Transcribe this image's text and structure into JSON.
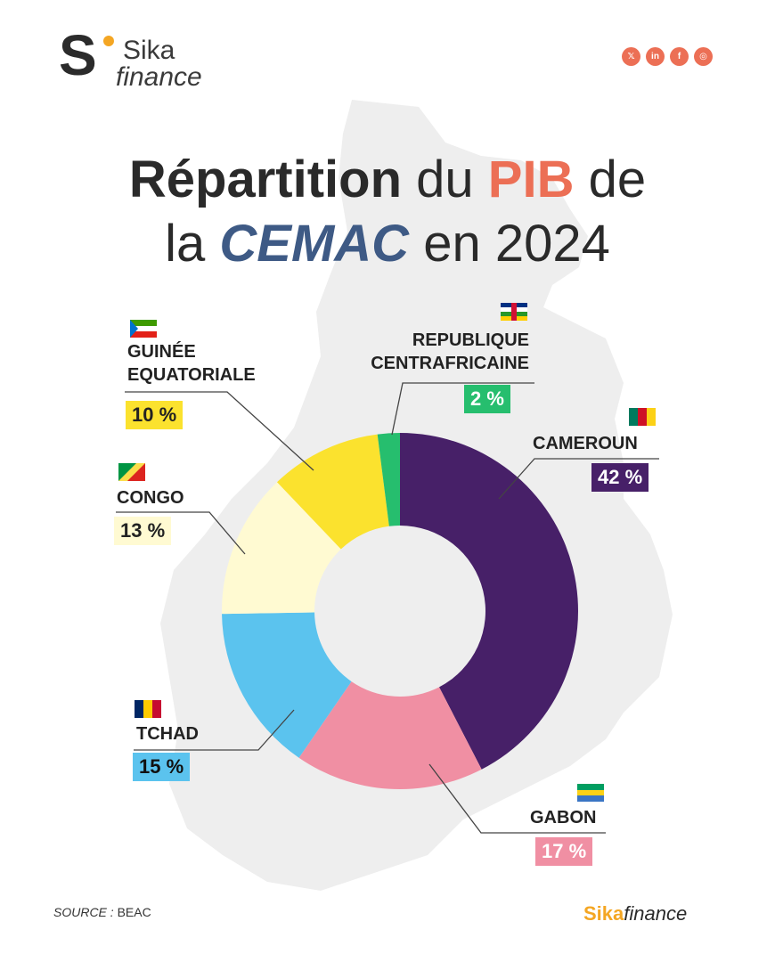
{
  "logo": {
    "letter": "S",
    "line1": "Sika",
    "line2": "finance"
  },
  "socials": [
    "x-icon",
    "linkedin-icon",
    "facebook-icon",
    "instagram-icon"
  ],
  "social_glyphs": [
    "𝕏",
    "in",
    "f",
    "◎"
  ],
  "title": {
    "w1": "Répartition",
    "w2": "du",
    "w3": "PIB",
    "w4": "de",
    "w5": "la",
    "w6": "CEMAC",
    "w7": "en 2024"
  },
  "colors": {
    "accent": "#ec6f55",
    "navy": "#3e5a85",
    "yellow": "#f4a623"
  },
  "chart_data": {
    "type": "pie",
    "title": "Répartition du PIB de la CEMAC en 2024",
    "unit": "%",
    "slices": [
      {
        "label": "CAMEROUN",
        "value": 42,
        "display": "42 %",
        "color": "#472068"
      },
      {
        "label": "GABON",
        "value": 17,
        "display": "17 %",
        "color": "#f08fa3"
      },
      {
        "label": "TCHAD",
        "value": 15,
        "display": "15 %",
        "color": "#5bc3ee"
      },
      {
        "label": "CONGO",
        "value": 13,
        "display": "13 %",
        "color": "#fffad2"
      },
      {
        "label": "GUINÉE EQUATORIALE",
        "value": 10,
        "display": "10 %",
        "color": "#fbe22e"
      },
      {
        "label": "REPUBLIQUE CENTRAFRICAINE",
        "value": 2,
        "display": "2 %",
        "color": "#26be6e"
      }
    ]
  },
  "labels": {
    "cameroun": "CAMEROUN",
    "gabon": "GABON",
    "tchad": "TCHAD",
    "congo": "CONGO",
    "guinee_l1": "GUINÉE",
    "guinee_l2": "EQUATORIALE",
    "rca_l1": "REPUBLIQUE",
    "rca_l2": "CENTRAFRICAINE"
  },
  "source": {
    "label": "SOURCE :",
    "value": "BEAC"
  },
  "brand": {
    "p1": "Sika",
    "p2": "finance"
  }
}
